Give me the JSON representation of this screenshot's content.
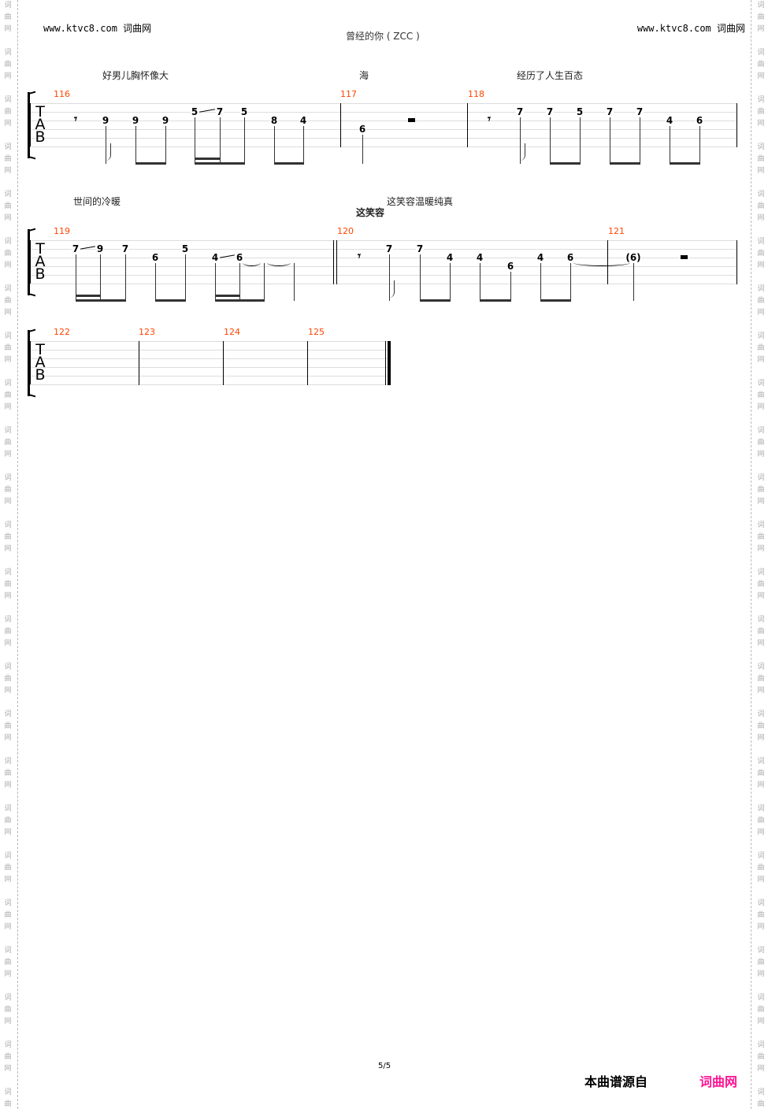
{
  "header": {
    "site_left": "www.ktvc8.com 词曲网",
    "site_right": "www.ktvc8.com 词曲网",
    "title": "曾经的你 ( ZCC )"
  },
  "watermark": [
    "词",
    "曲",
    "网"
  ],
  "tab_letters": [
    "T",
    "A",
    "B"
  ],
  "lyrics": {
    "l1": "好男儿胸怀像大",
    "l2": "海",
    "l3": "经历了人生百态",
    "l4": "世间的冷暖",
    "l5": "这笑容温暖纯真",
    "l6": "这笑容"
  },
  "systems": [
    {
      "measures": [
        {
          "number": "116",
          "notes": [
            {
              "rest": "eighth"
            },
            {
              "fret": "9",
              "string": 3
            },
            {
              "fret": "9",
              "string": 3
            },
            {
              "fret": "9",
              "string": 3
            },
            {
              "fret": "5",
              "string": 2,
              "slide": true
            },
            {
              "fret": "7",
              "string": 2
            },
            {
              "fret": "5",
              "string": 2
            },
            {
              "fret": "8",
              "string": 3
            },
            {
              "fret": "4",
              "string": 3
            }
          ]
        },
        {
          "number": "117",
          "notes": [
            {
              "fret": "6",
              "string": 4
            },
            {
              "rest": "half"
            }
          ]
        },
        {
          "number": "118",
          "notes": [
            {
              "rest": "eighth"
            },
            {
              "fret": "7",
              "string": 2
            },
            {
              "fret": "7",
              "string": 2
            },
            {
              "fret": "5",
              "string": 2
            },
            {
              "fret": "7",
              "string": 2
            },
            {
              "fret": "7",
              "string": 2
            },
            {
              "fret": "4",
              "string": 3
            },
            {
              "fret": "6",
              "string": 3
            }
          ]
        }
      ]
    },
    {
      "measures": [
        {
          "number": "119",
          "notes": [
            {
              "fret": "7",
              "string": 2,
              "slide": true
            },
            {
              "fret": "9",
              "string": 2
            },
            {
              "fret": "7",
              "string": 2
            },
            {
              "fret": "6",
              "string": 3
            },
            {
              "fret": "5",
              "string": 2
            },
            {
              "fret": "4",
              "string": 3,
              "slide": true
            },
            {
              "fret": "6",
              "string": 3,
              "tie": true
            },
            {
              "tie": true
            },
            {}
          ]
        },
        {
          "number": "120",
          "notes": [
            {
              "rest": "eighth"
            },
            {
              "fret": "7",
              "string": 2
            },
            {
              "fret": "7",
              "string": 2
            },
            {
              "fret": "4",
              "string": 3
            },
            {
              "fret": "4",
              "string": 3
            },
            {
              "fret": "6",
              "string": 4
            },
            {
              "fret": "4",
              "string": 3
            },
            {
              "fret": "6",
              "string": 3,
              "tie": true
            }
          ]
        },
        {
          "number": "121",
          "notes": [
            {
              "fret": "(6)",
              "string": 3
            },
            {
              "rest": "half"
            }
          ]
        }
      ]
    },
    {
      "measures": [
        {
          "number": "122",
          "notes": []
        },
        {
          "number": "123",
          "notes": []
        },
        {
          "number": "124",
          "notes": []
        },
        {
          "number": "125",
          "notes": []
        }
      ]
    }
  ],
  "footer": {
    "page": "5/5",
    "source_label": "本曲谱源自",
    "source_site": "词曲网",
    "source_color": "#ff1493"
  }
}
